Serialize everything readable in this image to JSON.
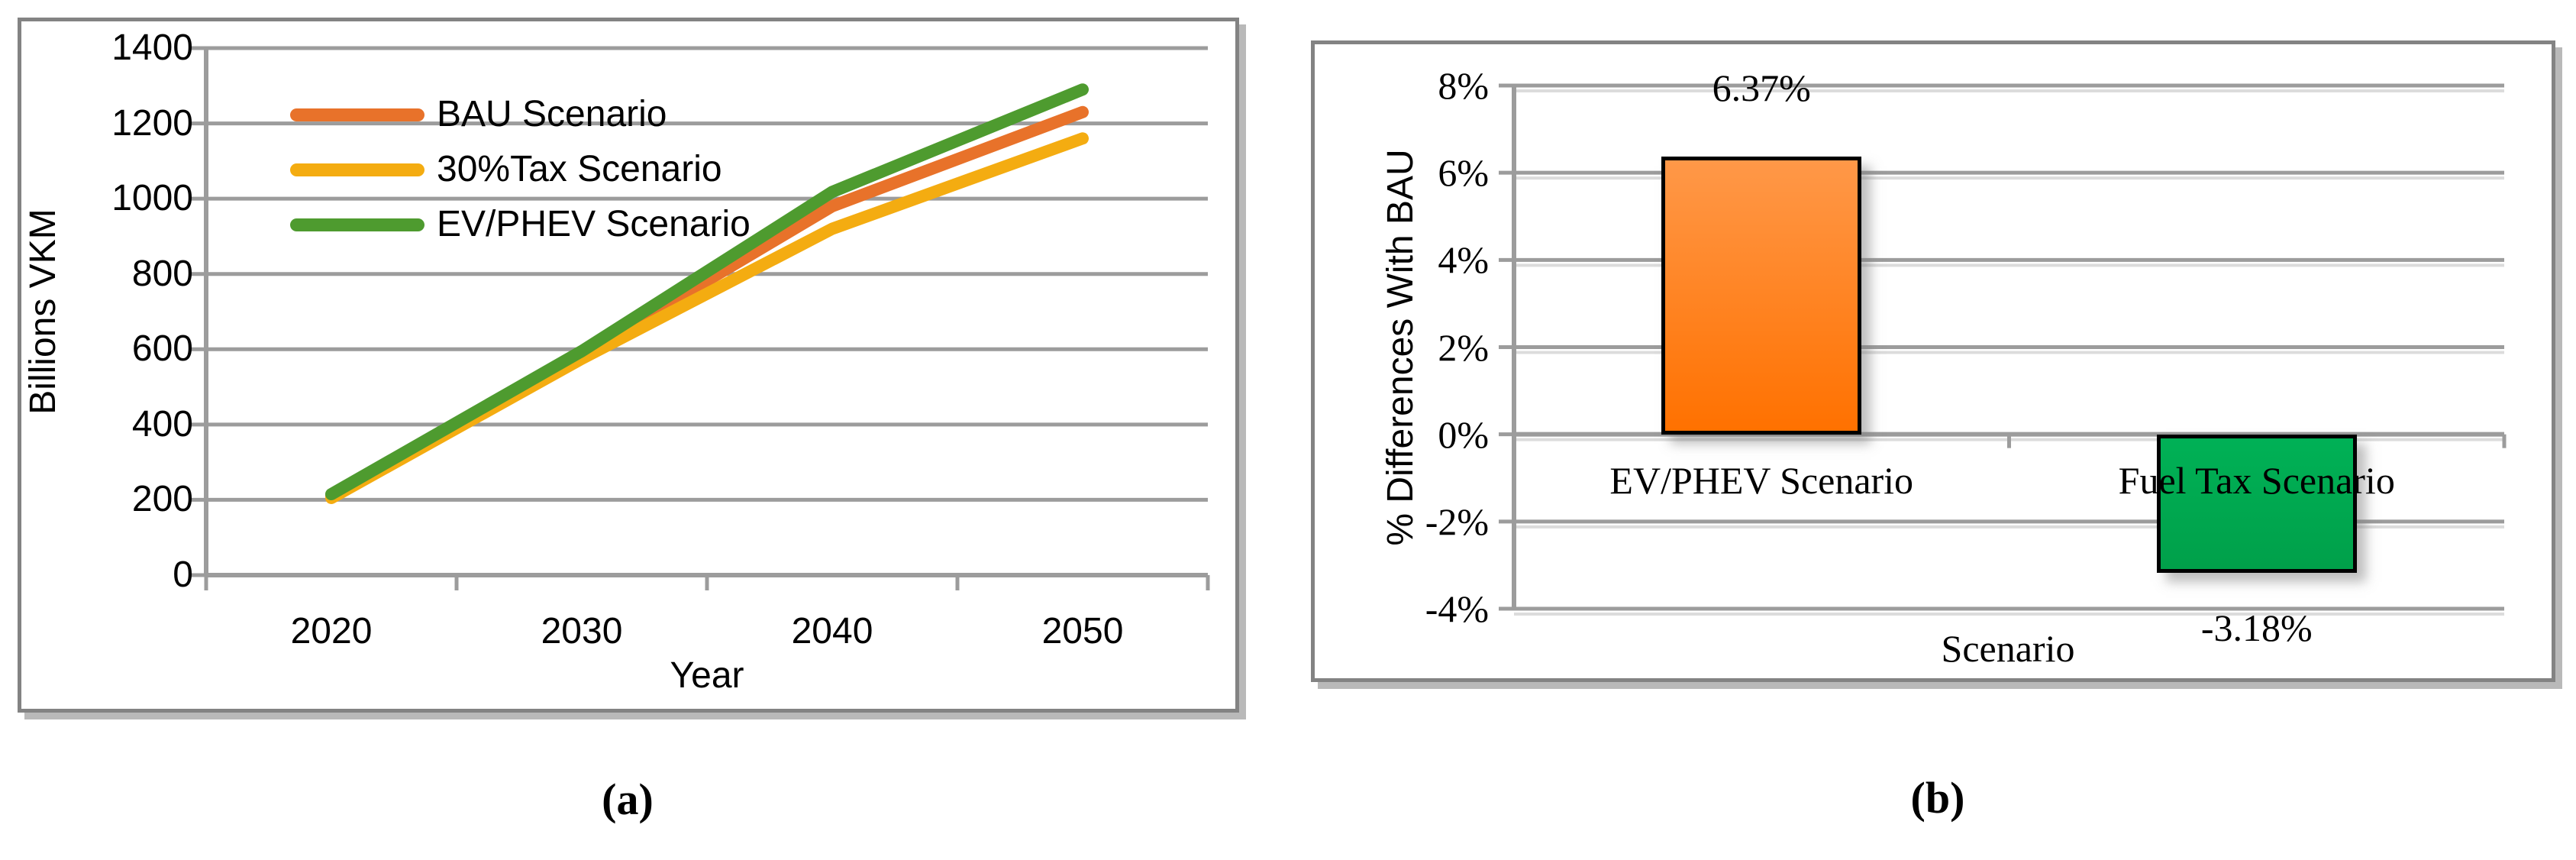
{
  "figure": {
    "caption_a": "(a)",
    "caption_b": "(b)"
  },
  "chart_data": [
    {
      "type": "line",
      "title": "",
      "xlabel": "Year",
      "ylabel": "Billions VKM",
      "categories": [
        "2020",
        "2030",
        "2040",
        "2050"
      ],
      "yticks": [
        0,
        200,
        400,
        600,
        800,
        1000,
        1200,
        1400
      ],
      "ylim": [
        0,
        1400
      ],
      "grid": true,
      "legend_position": "inside-top-left",
      "series": [
        {
          "name": "BAU Scenario",
          "color": "#E8722A",
          "values": [
            210,
            585,
            980,
            1230
          ]
        },
        {
          "name": "30%Tax Scenario",
          "color": "#F4AC11",
          "values": [
            205,
            575,
            920,
            1160
          ]
        },
        {
          "name": "EV/PHEV Scenario",
          "color": "#4E9B2F",
          "values": [
            215,
            595,
            1018,
            1290
          ]
        }
      ]
    },
    {
      "type": "bar",
      "title": "",
      "xlabel": "Scenario",
      "ylabel": "% Differences With BAU",
      "categories": [
        "EV/PHEV Scenario",
        "Fuel Tax Scenario"
      ],
      "values": [
        6.37,
        -3.18
      ],
      "value_labels": [
        "6.37%",
        "-3.18%"
      ],
      "yticks": [
        8,
        6,
        4,
        2,
        0,
        -2,
        -4
      ],
      "ytick_labels": [
        "8%",
        "6%",
        "4%",
        "2%",
        "0%",
        "-2%",
        "-4%"
      ],
      "ylim": [
        -4,
        8
      ],
      "grid": true,
      "bar_colors_top": [
        "#FF9848",
        "#00B156"
      ],
      "bar_colors_bottom": [
        "#FF7100",
        "#00A04A"
      ]
    }
  ],
  "style": {
    "grid_color": "#9C9C9C",
    "grid_shadow_color": "#DCDCDC",
    "box_border_color": "#838383"
  }
}
